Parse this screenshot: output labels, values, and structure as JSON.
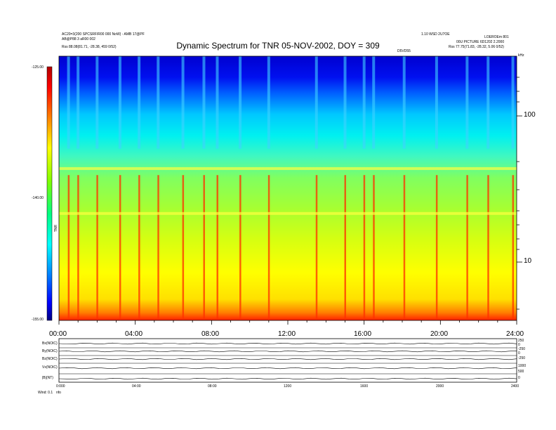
{
  "header": {
    "title": "Dynamic Spectrum for TNR 05-NOV-2002, DOY = 309",
    "top_left_line1": "AC20=3(200 SPCSRF/R00 000 NoW) - AMB 17@PF",
    "top_left_line2": "AB@P88 3 aR00 002",
    "top_left_line3": "Rss  88.08(81.71, -28.38, 459 0/52)",
    "top_right_line1": "1.10 WSD 2U7OE",
    "top_right_line2": "LOEROEm 801",
    "top_right_line3": "00U PICTURE 6D1202 2.2000",
    "top_right_line4": "Rss  77.75(71.83, -28.32, 5.06 0/52)",
    "marker_label": "D5VD55",
    "right_top_label": "kHz"
  },
  "chart_data": {
    "type": "heatmap",
    "title": "Dynamic Spectrum for TNR 05-NOV-2002, DOY = 309",
    "x_ticks": [
      "00:00",
      "04:00",
      "08:00",
      "12:00",
      "16:00",
      "20:00",
      "24:00"
    ],
    "x_range_hours": [
      0,
      24
    ],
    "y_ticks_right": [
      "100",
      "10"
    ],
    "y_ticks_right_values_khz": [
      100,
      10
    ],
    "y_range_khz": [
      4,
      250
    ],
    "colorbar": {
      "label": "TNR",
      "ticks": [
        "-125.00",
        "-140.00",
        "-155.00"
      ],
      "values": [
        -125,
        -140,
        -155
      ],
      "colors": [
        "#b00000",
        "#ff0000",
        "#ff8000",
        "#ffff00",
        "#80ff00",
        "#00ff80",
        "#00ffff",
        "#0080ff",
        "#0000ff",
        "#000080"
      ]
    },
    "bursts_hours": [
      0.5,
      1.0,
      2.0,
      3.2,
      4.2,
      5.2,
      6.5,
      7.6,
      8.3,
      9.5,
      11.0,
      13.5,
      15.0,
      16.0,
      16.5,
      18.1,
      19.8,
      21.4,
      22.5,
      23.8
    ]
  },
  "bottom_panel": {
    "labels": [
      "Bx(NOIC)",
      "By(NOIC)",
      "Bz(NOIC)",
      "Vx(NOIC)",
      "|B|(NT)"
    ],
    "right_ticks": [
      "250",
      "0",
      "-250",
      "0",
      "-250",
      "1000",
      "500",
      "0"
    ],
    "x_ticks": [
      "0:000",
      "04:00",
      "08:00",
      "1200",
      "1600",
      "2000",
      "2400"
    ],
    "footer": "Wind: 0.1",
    "footer_right": "nfo"
  }
}
